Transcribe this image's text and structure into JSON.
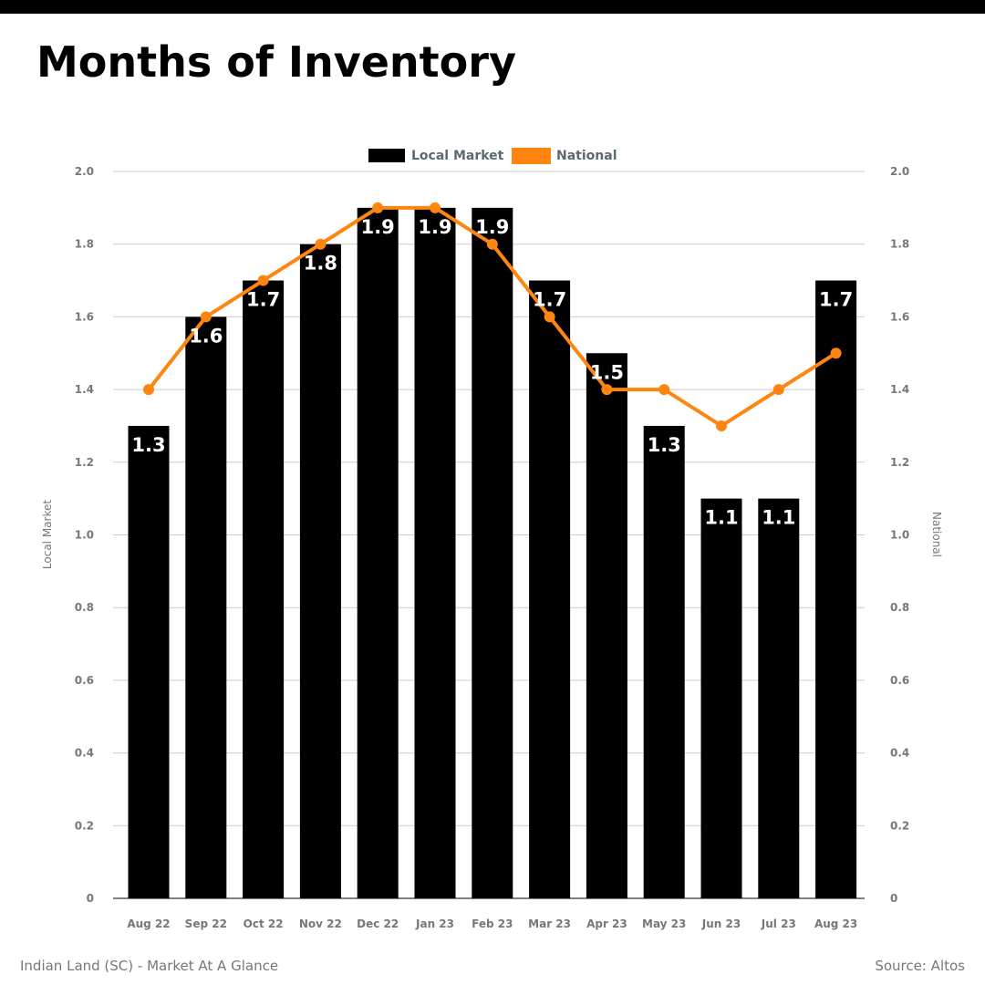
{
  "page": {
    "title": "Months of Inventory",
    "footer_left": "Indian Land (SC) - Market At A Glance",
    "footer_right": "Source: Altos"
  },
  "colors": {
    "local": "#000000",
    "national": "#ff8511",
    "grid": "#cccccc",
    "tick_text": "#777777",
    "legend_text": "#5a6a72"
  },
  "chart_data": {
    "type": "bar",
    "categories": [
      "Aug 22",
      "Sep 22",
      "Oct 22",
      "Nov 22",
      "Dec 22",
      "Jan 23",
      "Feb 23",
      "Mar 23",
      "Apr 23",
      "May 23",
      "Jun 23",
      "Jul 23",
      "Aug 23"
    ],
    "series": [
      {
        "name": "Local Market",
        "type": "bar",
        "axis": "left",
        "values": [
          1.3,
          1.6,
          1.7,
          1.8,
          1.9,
          1.9,
          1.9,
          1.7,
          1.5,
          1.3,
          1.1,
          1.1,
          1.7
        ],
        "data_labels": [
          "1.3",
          "1.6",
          "1.7",
          "1.8",
          "1.9",
          "1.9",
          "1.9",
          "1.7",
          "1.5",
          "1.3",
          "1.1",
          "1.1",
          "1.7"
        ]
      },
      {
        "name": "National",
        "type": "line",
        "axis": "right",
        "values": [
          1.4,
          1.6,
          1.7,
          1.8,
          1.9,
          1.9,
          1.8,
          1.6,
          1.4,
          1.4,
          1.3,
          1.4,
          1.5
        ]
      }
    ],
    "title": "Months of Inventory",
    "ylabel": "Local Market",
    "y2label": "National",
    "ylim": [
      0,
      2.0
    ],
    "y2lim": [
      0,
      2.0
    ],
    "yticks": [
      "0",
      "0.2",
      "0.4",
      "0.6",
      "0.8",
      "1.0",
      "1.2",
      "1.4",
      "1.6",
      "1.8",
      "2.0"
    ],
    "y2ticks": [
      "0",
      "0.2",
      "0.4",
      "0.6",
      "0.8",
      "1.0",
      "1.2",
      "1.4",
      "1.6",
      "1.8",
      "2.0"
    ],
    "grid": true,
    "legend_position": "top-center"
  }
}
